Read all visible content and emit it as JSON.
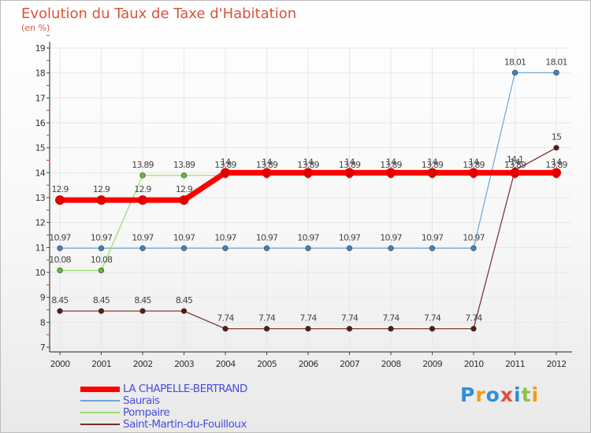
{
  "title": "Evolution du Taux de Taxe d'Habitation",
  "subtitle": "(en %)",
  "logo": {
    "text": "Proxiti",
    "letters": [
      {
        "ch": "P",
        "color": "#2d8fd9"
      },
      {
        "ch": "r",
        "color": "#f39c12"
      },
      {
        "ch": "o",
        "color": "#2d8fd9"
      },
      {
        "ch": "x",
        "color": "#e74c3c"
      },
      {
        "ch": "i",
        "color": "#2d8fd9"
      },
      {
        "ch": "t",
        "color": "#8bc34a"
      },
      {
        "ch": "i",
        "color": "#f39c12"
      }
    ]
  },
  "chart_data": {
    "type": "line",
    "title": "Evolution du Taux de Taxe d'Habitation",
    "ylabel": "(en %)",
    "xlabel": "",
    "categories": [
      "2000",
      "2001",
      "2002",
      "2003",
      "2004",
      "2005",
      "2006",
      "2007",
      "2008",
      "2009",
      "2010",
      "2011",
      "2012"
    ],
    "ylim": [
      7,
      19
    ],
    "yticks": [
      "7",
      "8",
      "9",
      "10",
      "11",
      "12",
      "13",
      "14",
      "15",
      "16",
      "17",
      "18",
      "19"
    ],
    "grid": true,
    "legend": "bottom-left",
    "series": [
      {
        "name": "Saurais",
        "color": "#6ea6d6",
        "marker": "#3a86c8",
        "width": 1.2,
        "values": [
          10.97,
          10.97,
          10.97,
          10.97,
          10.97,
          10.97,
          10.97,
          10.97,
          10.97,
          10.97,
          10.97,
          18.01,
          18.01
        ],
        "labels": [
          "10.97",
          "10.97",
          "10.97",
          "10.97",
          "10.97",
          "10.97",
          "10.97",
          "10.97",
          "10.97",
          "10.97",
          "10.97",
          "18.01",
          "18.01"
        ]
      },
      {
        "name": "Pompaire",
        "color": "#99dd66",
        "marker": "#66bb33",
        "width": 1.2,
        "values": [
          10.08,
          10.08,
          13.89,
          13.89,
          13.89,
          13.89,
          13.89,
          13.89,
          13.89,
          13.89,
          13.89,
          13.89,
          13.89
        ],
        "labels": [
          "10.08",
          "10.08",
          "13.89",
          "13.89",
          "13.89",
          "13.89",
          "13.89",
          "13.89",
          "13.89",
          "13.89",
          "13.89",
          "13.89",
          "13.89"
        ]
      },
      {
        "name": "Saint-Martin-du-Fouilloux",
        "color": "#7a2a2a",
        "marker": "#5a1a1a",
        "width": 1.2,
        "values": [
          8.45,
          8.45,
          8.45,
          8.45,
          7.74,
          7.74,
          7.74,
          7.74,
          7.74,
          7.74,
          7.74,
          14.1,
          15
        ],
        "labels": [
          "8.45",
          "8.45",
          "8.45",
          "8.45",
          "7.74",
          "7.74",
          "7.74",
          "7.74",
          "7.74",
          "7.74",
          "7.74",
          "14.1",
          "15"
        ]
      },
      {
        "name": "LA CHAPELLE-BERTRAND",
        "color": "#ff0000",
        "marker": "#e00000",
        "width": 7,
        "values": [
          12.9,
          12.9,
          12.9,
          12.9,
          14,
          14,
          14,
          14,
          14,
          14,
          14,
          14,
          14
        ],
        "labels": [
          "12.9",
          "12.9",
          "12.9",
          "12.9",
          "14",
          "14",
          "14",
          "14",
          "14",
          "14",
          "14",
          "14",
          "14"
        ]
      }
    ],
    "legend_order": [
      "LA CHAPELLE-BERTRAND",
      "Saurais",
      "Pompaire",
      "Saint-Martin-du-Fouilloux"
    ]
  }
}
